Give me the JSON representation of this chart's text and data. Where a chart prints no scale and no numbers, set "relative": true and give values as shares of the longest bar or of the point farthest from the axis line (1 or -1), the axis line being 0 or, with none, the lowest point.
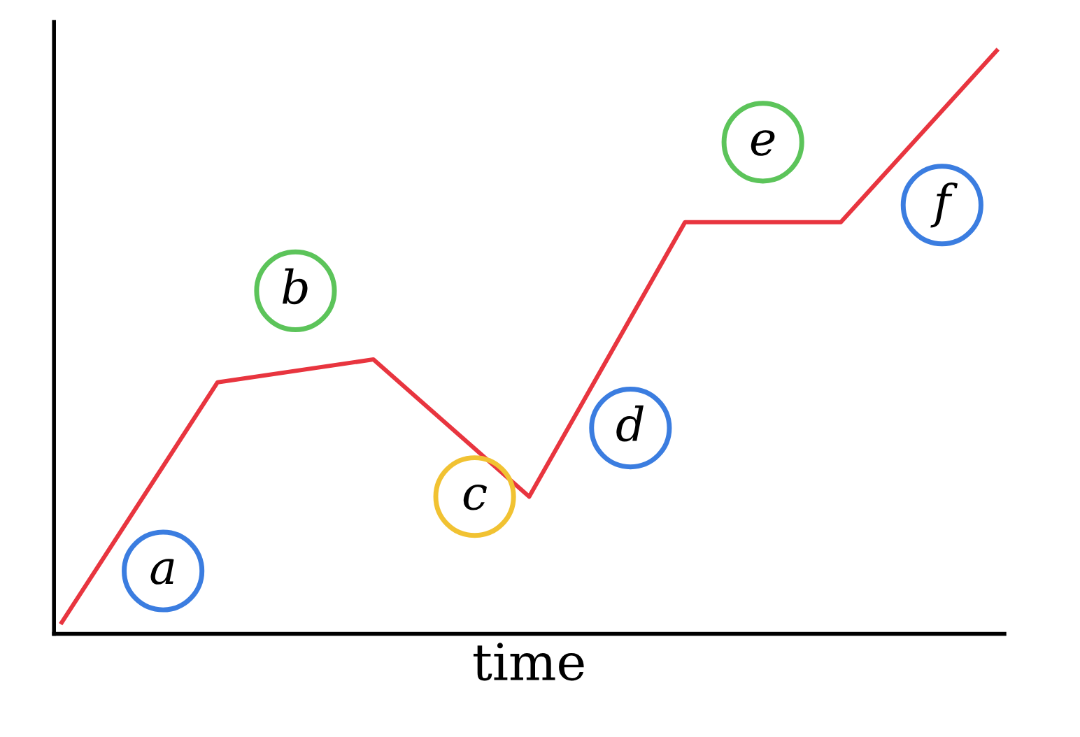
{
  "chart_data": {
    "type": "line",
    "relative": true,
    "xlabel": "time",
    "categories": [
      null,
      null,
      null,
      null,
      null,
      null,
      null
    ],
    "series": [
      {
        "color": "#e8353f",
        "values": [
          0,
          0.42,
          0.46,
          0.22,
          0.7,
          0.7,
          1
        ]
      }
    ],
    "annotations": [
      "a",
      "b",
      "c",
      "d",
      "e",
      "f"
    ],
    "grid": false,
    "legend": false,
    "tick_labels": false
  }
}
